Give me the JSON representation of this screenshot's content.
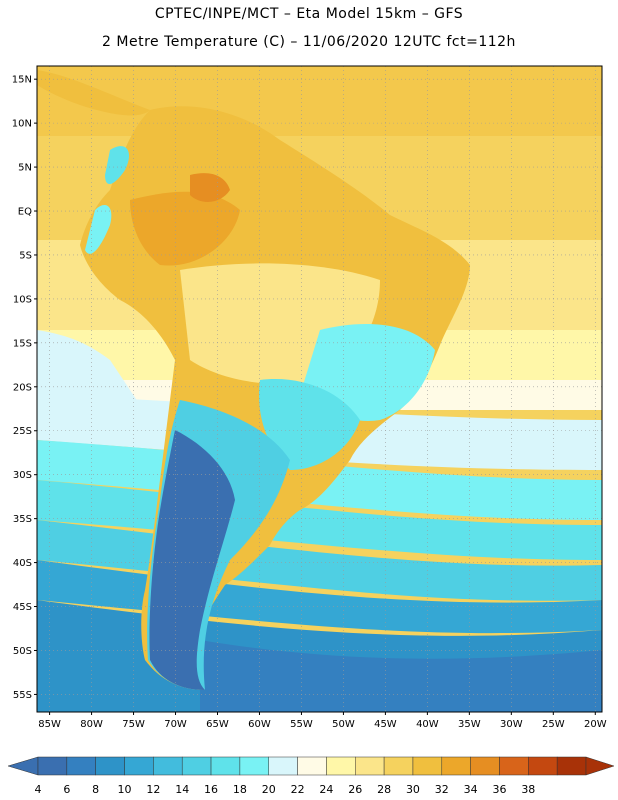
{
  "header": {
    "line1": "CPTEC/INPE/MCT –  Eta Model 15km – GFS",
    "line2": "2 Metre Temperature (C) – 11/06/2020 12UTC fct=112h"
  },
  "map": {
    "lat_range": [
      "56S",
      "17N"
    ],
    "lon_range": [
      "86W",
      "19W"
    ],
    "lat_ticks": [
      "15N",
      "10N",
      "5N",
      "EQ",
      "5S",
      "10S",
      "15S",
      "20S",
      "25S",
      "30S",
      "35S",
      "40S",
      "45S",
      "50S",
      "55S"
    ],
    "lon_ticks": [
      "85W",
      "80W",
      "75W",
      "70W",
      "65W",
      "60W",
      "55W",
      "50W",
      "45W",
      "40W",
      "35W",
      "30W",
      "25W",
      "20W"
    ],
    "grid": "dotted"
  },
  "colorbar": {
    "labels": [
      "4",
      "6",
      "8",
      "10",
      "12",
      "14",
      "16",
      "18",
      "20",
      "22",
      "24",
      "26",
      "28",
      "30",
      "32",
      "34",
      "36",
      "38"
    ],
    "colors": [
      "#3a6fb0",
      "#3480c0",
      "#2e93c8",
      "#35a7d4",
      "#42bcdd",
      "#4fcfe3",
      "#5fe2ea",
      "#79f2f4",
      "#d9f6fb",
      "#fffbe6",
      "#fff7a8",
      "#fbe58a",
      "#f5d25e",
      "#f0bf3e",
      "#eca72a",
      "#e68e22",
      "#d8641a",
      "#c44810",
      "#a83208"
    ],
    "low_cap_color": "#3a6fb0",
    "high_cap_color": "#a83208"
  }
}
